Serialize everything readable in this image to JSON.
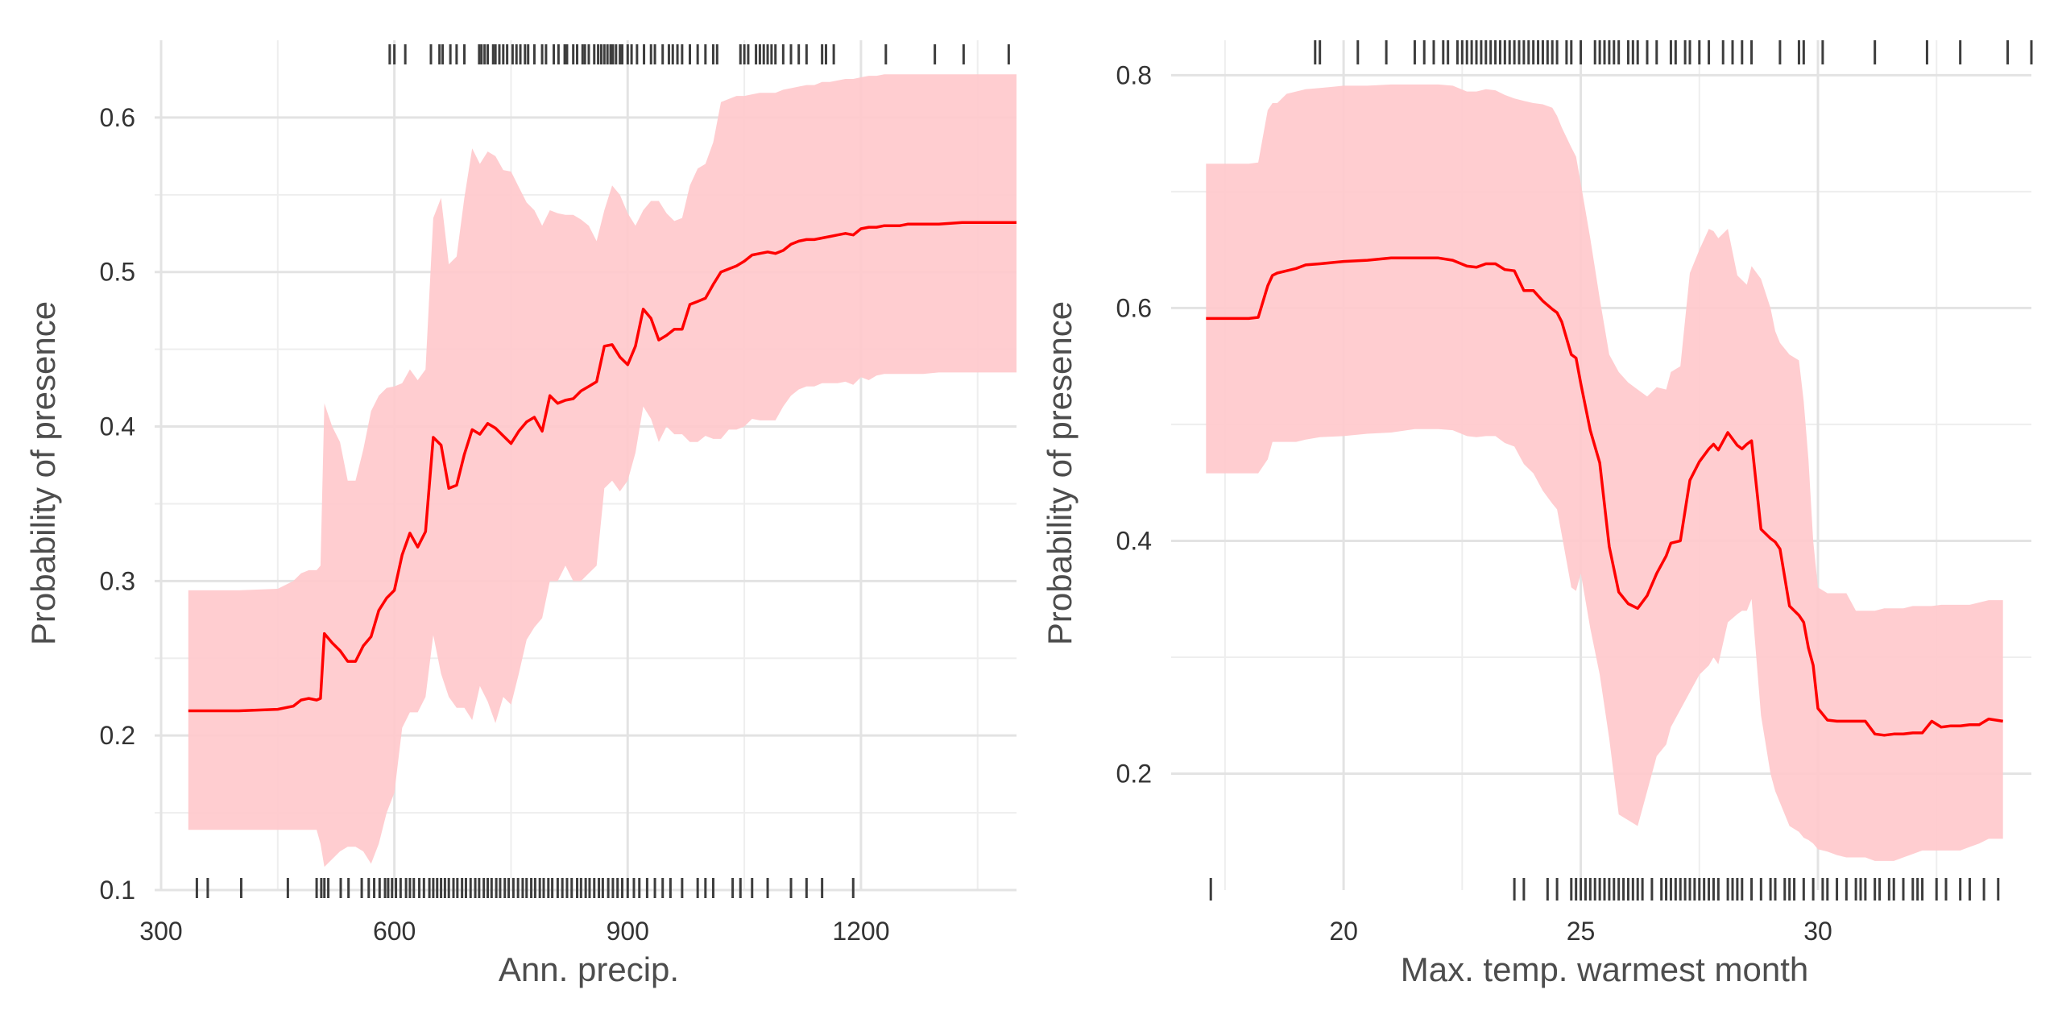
{
  "colors": {
    "background": "#ffffff",
    "grid_major": "#e3e3e3",
    "grid_minor": "#eeeeee",
    "line": "#ff0000",
    "ribbon": "#ffc9cc",
    "rug": "#3d3d3d"
  },
  "chart_data": [
    {
      "type": "line",
      "xlabel": "Ann. precip.",
      "ylabel": "Probability of presence",
      "xlim": [
        300,
        1400
      ],
      "ylim": [
        0.1,
        0.65
      ],
      "xticks": [
        300,
        600,
        900,
        1200
      ],
      "xtick_labels": [
        "300",
        "600",
        "900",
        "1200"
      ],
      "yticks": [
        0.1,
        0.2,
        0.3,
        0.4,
        0.5,
        0.6
      ],
      "ytick_labels": [
        "0.1",
        "0.2",
        "0.3",
        "0.4",
        "0.5",
        "0.6"
      ],
      "grid": true,
      "series": [
        {
          "x": [
            335,
            400,
            450,
            470,
            480,
            490,
            500,
            505,
            510,
            520,
            530,
            540,
            550,
            560,
            570,
            580,
            590,
            600,
            610,
            620,
            630,
            640,
            650,
            660,
            670,
            680,
            690,
            700,
            710,
            720,
            730,
            740,
            750,
            760,
            770,
            780,
            790,
            800,
            810,
            820,
            830,
            840,
            850,
            860,
            870,
            880,
            890,
            900,
            910,
            920,
            930,
            940,
            950,
            960,
            970,
            980,
            990,
            1000,
            1010,
            1020,
            1030,
            1040,
            1050,
            1060,
            1070,
            1080,
            1090,
            1100,
            1110,
            1120,
            1130,
            1140,
            1150,
            1160,
            1170,
            1180,
            1190,
            1200,
            1210,
            1220,
            1230,
            1240,
            1250,
            1260,
            1270,
            1280,
            1300,
            1330,
            1360,
            1380,
            1400
          ],
          "y": [
            0.216,
            0.216,
            0.217,
            0.219,
            0.223,
            0.224,
            0.223,
            0.224,
            0.266,
            0.26,
            0.255,
            0.248,
            0.248,
            0.258,
            0.264,
            0.281,
            0.289,
            0.294,
            0.317,
            0.331,
            0.322,
            0.332,
            0.393,
            0.388,
            0.36,
            0.362,
            0.382,
            0.398,
            0.395,
            0.402,
            0.399,
            0.394,
            0.389,
            0.397,
            0.403,
            0.406,
            0.397,
            0.42,
            0.415,
            0.417,
            0.418,
            0.423,
            0.426,
            0.429,
            0.452,
            0.453,
            0.445,
            0.44,
            0.452,
            0.476,
            0.47,
            0.456,
            0.459,
            0.463,
            0.463,
            0.479,
            0.481,
            0.483,
            0.492,
            0.5,
            0.502,
            0.504,
            0.507,
            0.511,
            0.512,
            0.513,
            0.512,
            0.514,
            0.518,
            0.52,
            0.521,
            0.521,
            0.522,
            0.523,
            0.524,
            0.525,
            0.524,
            0.528,
            0.529,
            0.529,
            0.53,
            0.53,
            0.53,
            0.531,
            0.531,
            0.531,
            0.531,
            0.532,
            0.532,
            0.532,
            0.532
          ],
          "lower": [
            0.139,
            0.139,
            0.139,
            0.139,
            0.139,
            0.139,
            0.139,
            0.13,
            0.115,
            0.12,
            0.125,
            0.128,
            0.128,
            0.125,
            0.117,
            0.13,
            0.15,
            0.163,
            0.205,
            0.215,
            0.215,
            0.225,
            0.265,
            0.24,
            0.225,
            0.218,
            0.218,
            0.21,
            0.232,
            0.222,
            0.208,
            0.225,
            0.22,
            0.24,
            0.262,
            0.27,
            0.276,
            0.3,
            0.3,
            0.31,
            0.3,
            0.3,
            0.305,
            0.31,
            0.36,
            0.365,
            0.358,
            0.365,
            0.383,
            0.413,
            0.405,
            0.39,
            0.4,
            0.395,
            0.395,
            0.39,
            0.39,
            0.394,
            0.392,
            0.392,
            0.398,
            0.398,
            0.4,
            0.405,
            0.404,
            0.404,
            0.404,
            0.413,
            0.42,
            0.424,
            0.426,
            0.426,
            0.428,
            0.428,
            0.428,
            0.429,
            0.427,
            0.432,
            0.43,
            0.433,
            0.434,
            0.434,
            0.434,
            0.434,
            0.434,
            0.434,
            0.435,
            0.435,
            0.435,
            0.435,
            0.435
          ],
          "upper": [
            0.294,
            0.294,
            0.295,
            0.3,
            0.305,
            0.307,
            0.307,
            0.31,
            0.415,
            0.4,
            0.39,
            0.365,
            0.365,
            0.385,
            0.41,
            0.42,
            0.425,
            0.426,
            0.428,
            0.437,
            0.43,
            0.437,
            0.535,
            0.548,
            0.505,
            0.51,
            0.548,
            0.58,
            0.57,
            0.578,
            0.575,
            0.566,
            0.565,
            0.555,
            0.545,
            0.54,
            0.53,
            0.54,
            0.538,
            0.537,
            0.537,
            0.534,
            0.53,
            0.52,
            0.54,
            0.556,
            0.55,
            0.538,
            0.53,
            0.54,
            0.546,
            0.546,
            0.538,
            0.533,
            0.535,
            0.556,
            0.567,
            0.57,
            0.584,
            0.61,
            0.612,
            0.614,
            0.614,
            0.615,
            0.616,
            0.616,
            0.616,
            0.618,
            0.619,
            0.62,
            0.621,
            0.621,
            0.623,
            0.623,
            0.624,
            0.625,
            0.625,
            0.626,
            0.627,
            0.627,
            0.628,
            0.628,
            0.628,
            0.628,
            0.628,
            0.628,
            0.628,
            0.628,
            0.628,
            0.628,
            0.628
          ]
        }
      ],
      "rug_top": [
        594,
        600,
        614,
        647,
        658,
        662,
        672,
        680,
        690,
        709,
        712,
        716,
        720,
        727,
        730,
        735,
        740,
        745,
        752,
        757,
        762,
        768,
        772,
        780,
        790,
        795,
        805,
        811,
        819,
        822,
        830,
        835,
        842,
        845,
        850,
        857,
        862,
        866,
        870,
        874,
        878,
        881,
        885,
        890,
        893,
        900,
        905,
        912,
        921,
        930,
        935,
        945,
        953,
        958,
        964,
        970,
        980,
        990,
        1000,
        1010,
        1015,
        1045,
        1050,
        1055,
        1065,
        1070,
        1075,
        1080,
        1085,
        1090,
        1100,
        1110,
        1120,
        1130,
        1150,
        1155,
        1165,
        1232,
        1295,
        1332,
        1390
      ],
      "rug_bottom": [
        346,
        360,
        403,
        463,
        500,
        506,
        510,
        515,
        531,
        541,
        558,
        567,
        574,
        581,
        588,
        592,
        597,
        602,
        608,
        615,
        620,
        625,
        632,
        638,
        645,
        650,
        655,
        660,
        665,
        670,
        676,
        681,
        687,
        692,
        698,
        704,
        709,
        715,
        720,
        725,
        731,
        736,
        742,
        747,
        753,
        759,
        765,
        770,
        776,
        781,
        787,
        792,
        798,
        803,
        810,
        816,
        822,
        828,
        835,
        840,
        846,
        851,
        857,
        863,
        868,
        875,
        881,
        887,
        893,
        900,
        908,
        915,
        925,
        935,
        945,
        955,
        970,
        990,
        1000,
        1010,
        1035,
        1045,
        1060,
        1080,
        1110,
        1130,
        1150,
        1190
      ]
    },
    {
      "type": "line",
      "xlabel": "Max. temp. warmest month",
      "ylabel": "Probability of presence",
      "xlim": [
        16.5,
        34.5
      ],
      "ylim": [
        0.1,
        0.83
      ],
      "xticks": [
        20,
        25,
        30
      ],
      "xtick_labels": [
        "20",
        "25",
        "30"
      ],
      "yticks": [
        0.2,
        0.4,
        0.6,
        0.8
      ],
      "ytick_labels": [
        "0.2",
        "0.4",
        "0.6",
        "0.8"
      ],
      "grid": true,
      "series": [
        {
          "x": [
            17.1,
            17.5,
            18,
            18.2,
            18.4,
            18.5,
            18.6,
            18.8,
            19,
            19.2,
            19.5,
            20,
            20.5,
            21,
            21.5,
            22,
            22.3,
            22.6,
            22.8,
            23,
            23.2,
            23.4,
            23.6,
            23.8,
            24,
            24.2,
            24.4,
            24.5,
            24.6,
            24.8,
            24.9,
            25,
            25.2,
            25.4,
            25.6,
            25.8,
            26,
            26.2,
            26.4,
            26.6,
            26.8,
            26.9,
            27.1,
            27.3,
            27.5,
            27.7,
            27.8,
            27.9,
            28.1,
            28.3,
            28.4,
            28.5,
            28.6,
            28.8,
            29,
            29.1,
            29.2,
            29.4,
            29.6,
            29.7,
            29.8,
            29.9,
            30,
            30.2,
            30.4,
            30.6,
            30.8,
            31,
            31.2,
            31.4,
            31.6,
            31.8,
            32,
            32.2,
            32.4,
            32.6,
            32.8,
            33,
            33.2,
            33.4,
            33.6,
            33.9
          ],
          "y": [
            0.591,
            0.591,
            0.591,
            0.592,
            0.619,
            0.628,
            0.63,
            0.632,
            0.634,
            0.637,
            0.638,
            0.64,
            0.641,
            0.643,
            0.643,
            0.643,
            0.641,
            0.636,
            0.635,
            0.638,
            0.638,
            0.633,
            0.632,
            0.615,
            0.615,
            0.606,
            0.599,
            0.596,
            0.588,
            0.56,
            0.557,
            0.535,
            0.495,
            0.467,
            0.395,
            0.356,
            0.346,
            0.342,
            0.353,
            0.372,
            0.387,
            0.398,
            0.4,
            0.452,
            0.468,
            0.479,
            0.483,
            0.478,
            0.493,
            0.482,
            0.479,
            0.483,
            0.486,
            0.41,
            0.402,
            0.399,
            0.393,
            0.344,
            0.336,
            0.33,
            0.308,
            0.293,
            0.256,
            0.246,
            0.245,
            0.245,
            0.245,
            0.245,
            0.234,
            0.233,
            0.234,
            0.234,
            0.235,
            0.235,
            0.245,
            0.24,
            0.241,
            0.241,
            0.242,
            0.242,
            0.247,
            0.245
          ],
          "lower": [
            0.458,
            0.458,
            0.458,
            0.458,
            0.47,
            0.485,
            0.485,
            0.485,
            0.485,
            0.487,
            0.489,
            0.49,
            0.492,
            0.493,
            0.496,
            0.496,
            0.495,
            0.49,
            0.489,
            0.49,
            0.49,
            0.484,
            0.481,
            0.466,
            0.458,
            0.443,
            0.432,
            0.427,
            0.405,
            0.36,
            0.357,
            0.372,
            0.325,
            0.285,
            0.23,
            0.165,
            0.16,
            0.155,
            0.185,
            0.215,
            0.225,
            0.24,
            0.255,
            0.27,
            0.285,
            0.293,
            0.3,
            0.294,
            0.33,
            0.337,
            0.34,
            0.34,
            0.35,
            0.25,
            0.2,
            0.185,
            0.175,
            0.155,
            0.15,
            0.145,
            0.143,
            0.14,
            0.135,
            0.133,
            0.13,
            0.128,
            0.128,
            0.128,
            0.125,
            0.125,
            0.125,
            0.128,
            0.131,
            0.134,
            0.134,
            0.134,
            0.134,
            0.134,
            0.137,
            0.14,
            0.144,
            0.144
          ],
          "upper": [
            0.724,
            0.724,
            0.724,
            0.725,
            0.77,
            0.776,
            0.776,
            0.784,
            0.786,
            0.788,
            0.789,
            0.791,
            0.791,
            0.792,
            0.792,
            0.792,
            0.791,
            0.786,
            0.786,
            0.788,
            0.787,
            0.783,
            0.78,
            0.778,
            0.776,
            0.775,
            0.772,
            0.765,
            0.755,
            0.738,
            0.73,
            0.707,
            0.66,
            0.608,
            0.56,
            0.545,
            0.536,
            0.53,
            0.524,
            0.532,
            0.53,
            0.545,
            0.55,
            0.63,
            0.65,
            0.668,
            0.666,
            0.66,
            0.668,
            0.628,
            0.624,
            0.62,
            0.636,
            0.625,
            0.6,
            0.58,
            0.57,
            0.56,
            0.555,
            0.52,
            0.47,
            0.4,
            0.36,
            0.355,
            0.355,
            0.355,
            0.34,
            0.34,
            0.34,
            0.342,
            0.342,
            0.342,
            0.344,
            0.344,
            0.344,
            0.345,
            0.345,
            0.345,
            0.345,
            0.347,
            0.349,
            0.349
          ]
        }
      ],
      "rug_top": [
        19.4,
        19.5,
        20.3,
        20.9,
        21.5,
        21.7,
        21.9,
        22.1,
        22.2,
        22.4,
        22.5,
        22.6,
        22.7,
        22.8,
        22.9,
        23.0,
        23.1,
        23.2,
        23.3,
        23.4,
        23.5,
        23.6,
        23.7,
        23.8,
        23.9,
        24.0,
        24.1,
        24.2,
        24.3,
        24.4,
        24.5,
        24.7,
        24.8,
        25.0,
        25.3,
        25.4,
        25.5,
        25.6,
        25.7,
        25.8,
        26.0,
        26.1,
        26.2,
        26.4,
        26.6,
        26.9,
        27.0,
        27.2,
        27.3,
        27.5,
        27.7,
        28.0,
        28.2,
        28.4,
        28.6,
        29.2,
        29.6,
        29.7,
        30.1,
        31.2,
        32.3,
        33.0,
        34.0,
        34.5
      ],
      "rug_bottom": [
        17.2,
        23.6,
        23.8,
        24.3,
        24.5,
        24.8,
        24.9,
        25.0,
        25.1,
        25.2,
        25.3,
        25.4,
        25.5,
        25.6,
        25.7,
        25.8,
        25.9,
        26.0,
        26.1,
        26.2,
        26.3,
        26.5,
        26.7,
        26.8,
        26.9,
        27.0,
        27.1,
        27.2,
        27.3,
        27.4,
        27.5,
        27.6,
        27.7,
        27.8,
        27.9,
        28.1,
        28.2,
        28.3,
        28.4,
        28.6,
        28.8,
        29.0,
        29.1,
        29.3,
        29.4,
        29.5,
        29.7,
        29.9,
        30.1,
        30.2,
        30.4,
        30.6,
        30.8,
        30.9,
        31.0,
        31.2,
        31.3,
        31.5,
        31.6,
        31.8,
        32.0,
        32.1,
        32.2,
        32.5,
        32.7,
        33.0,
        33.2,
        33.5,
        33.8
      ]
    }
  ]
}
